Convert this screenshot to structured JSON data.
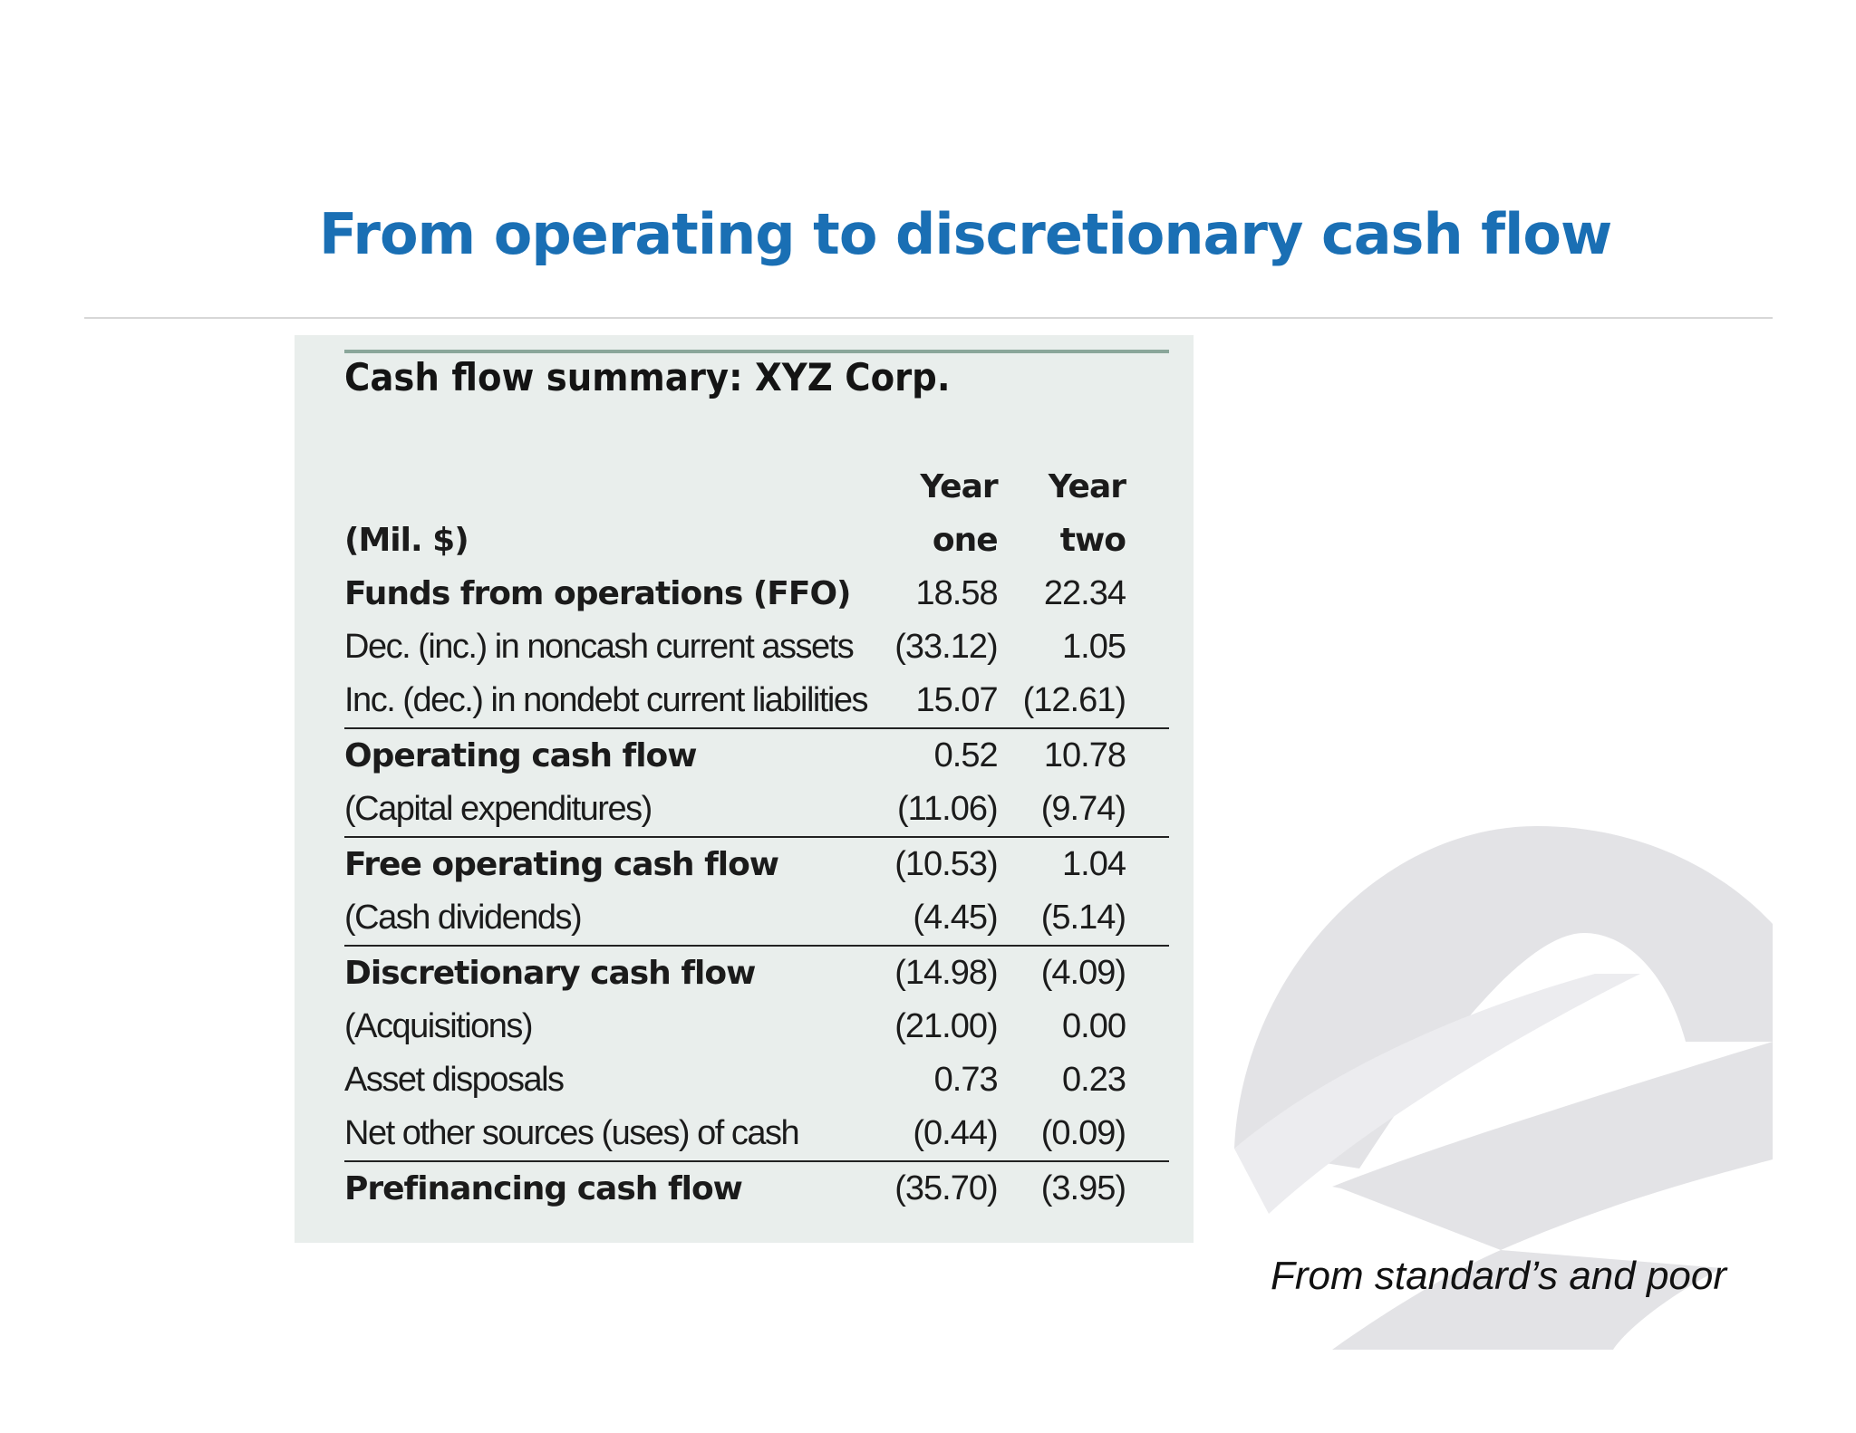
{
  "slide": {
    "title": "From operating to discretionary cash flow",
    "source": "From standard’s and poor"
  },
  "table": {
    "title": "Cash flow summary: XYZ Corp.",
    "header": {
      "col1_line1": "Year",
      "col2_line1": "Year",
      "unit_label": "(Mil. $)",
      "col1_line2": "one",
      "col2_line2": "two"
    },
    "rows": [
      {
        "label": "Funds from operations (FFO)",
        "y1": "18.58",
        "y2": "22.34"
      },
      {
        "label": "Dec. (inc.) in noncash current assets",
        "y1": "(33.12)",
        "y2": "1.05"
      },
      {
        "label": "Inc. (dec.) in nondebt current liabilities",
        "y1": "15.07",
        "y2": "(12.61)"
      },
      {
        "label": "Operating cash flow",
        "y1": "0.52",
        "y2": "10.78"
      },
      {
        "label": "(Capital expenditures)",
        "y1": "(11.06)",
        "y2": "(9.74)"
      },
      {
        "label": "Free operating cash flow",
        "y1": "(10.53)",
        "y2": "1.04"
      },
      {
        "label": "(Cash dividends)",
        "y1": "(4.45)",
        "y2": "(5.14)"
      },
      {
        "label": "Discretionary cash flow",
        "y1": "(14.98)",
        "y2": "(4.09)"
      },
      {
        "label": "(Acquisitions)",
        "y1": "(21.00)",
        "y2": "0.00"
      },
      {
        "label": "Asset disposals",
        "y1": "0.73",
        "y2": "0.23"
      },
      {
        "label": "Net other sources (uses) of cash",
        "y1": "(0.44)",
        "y2": "(0.09)"
      },
      {
        "label": "Prefinancing cash flow",
        "y1": "(35.70)",
        "y2": "(3.95)"
      }
    ]
  },
  "colors": {
    "title": "#1a6fb4",
    "panel": "#e9eeec",
    "logo": "#e3e3e6"
  },
  "logo": {
    "icon": "swoosh-logo-icon"
  }
}
